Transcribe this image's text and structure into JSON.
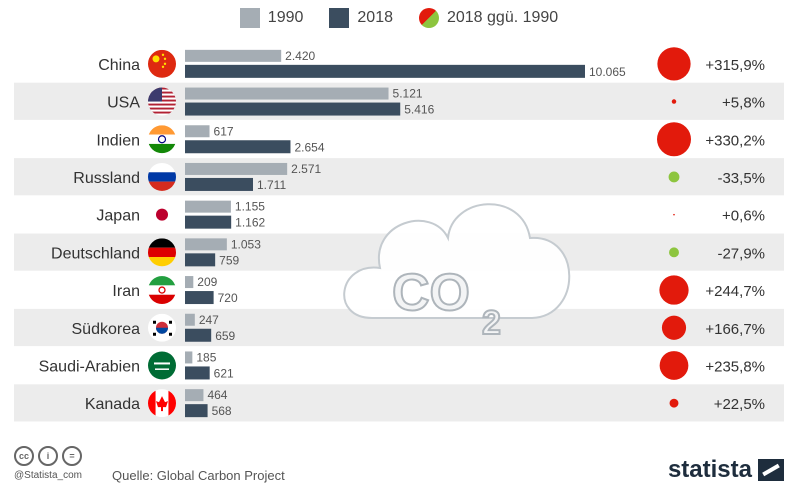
{
  "legend": {
    "s1990": {
      "label": "1990",
      "color": "#a5adb4"
    },
    "s2018": {
      "label": "2018",
      "color": "#3b4d5f"
    },
    "change": {
      "label": "2018 ggü. 1990",
      "color_up": "#e21a0c",
      "color_down": "#8dc53f"
    }
  },
  "chart_data": {
    "type": "bar",
    "orientation": "horizontal",
    "categories": [
      "China",
      "USA",
      "Indien",
      "Russland",
      "Japan",
      "Deutschland",
      "Iran",
      "Südkorea",
      "Saudi-Arabien",
      "Kanada"
    ],
    "series": [
      {
        "name": "1990",
        "values": [
          2420,
          5121,
          617,
          2571,
          1155,
          1053,
          209,
          247,
          185,
          464
        ],
        "labels": [
          "2.420",
          "5.121",
          "617",
          "2.571",
          "1.155",
          "1.053",
          "209",
          "247",
          "185",
          "464"
        ]
      },
      {
        "name": "2018",
        "values": [
          10065,
          5416,
          2654,
          1711,
          1162,
          759,
          720,
          659,
          621,
          568
        ],
        "labels": [
          "10.065",
          "5.416",
          "2.654",
          "1.711",
          "1.162",
          "759",
          "720",
          "659",
          "621",
          "568"
        ]
      }
    ],
    "change_pct": [
      315.9,
      5.8,
      330.2,
      -33.5,
      0.6,
      -27.9,
      244.7,
      166.7,
      235.8,
      22.5
    ],
    "change_labels": [
      "+315,9%",
      "+5,8%",
      "+330,2%",
      "-33,5%",
      "+0,6%",
      "-27,9%",
      "+244,7%",
      "+166,7%",
      "+235,8%",
      "+22,5%"
    ],
    "xlim": [
      0,
      10065
    ],
    "flags": [
      "china-flag",
      "usa-flag",
      "india-flag",
      "russia-flag",
      "japan-flag",
      "germany-flag",
      "iran-flag",
      "south-korea-flag",
      "saudi-arabia-flag",
      "canada-flag"
    ]
  },
  "illustration": {
    "formula": "CO",
    "subscript": "2"
  },
  "footer": {
    "cc": [
      "cc",
      "i",
      "="
    ],
    "handle": "@Statista_com",
    "source": "Quelle: Global Carbon Project",
    "brand": "statista"
  }
}
